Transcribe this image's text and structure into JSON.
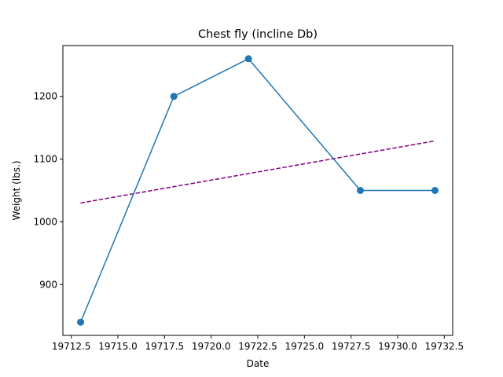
{
  "chart_data": {
    "type": "line",
    "title": "Chest fly (incline Db)",
    "xlabel": "Date",
    "ylabel": "Weight (lbs.)",
    "xlim": [
      19712.05,
      19732.95
    ],
    "ylim": [
      819,
      1281
    ],
    "x_ticks": [
      19712.5,
      19715.0,
      19717.5,
      19720.0,
      19722.5,
      19725.0,
      19727.5,
      19730.0,
      19732.5
    ],
    "x_tick_labels": [
      "19712.5",
      "19715.0",
      "19717.5",
      "19720.0",
      "19722.5",
      "19725.0",
      "19727.5",
      "19730.0",
      "19732.5"
    ],
    "y_ticks": [
      900,
      1000,
      1100,
      1200
    ],
    "y_tick_labels": [
      "900",
      "1000",
      "1100",
      "1200"
    ],
    "grid": false,
    "series": [
      {
        "style": "solid-with-markers",
        "color": "#1f77b4",
        "x": [
          19713,
          19718,
          19722,
          19728,
          19732
        ],
        "y": [
          840,
          1200,
          1260,
          1050,
          1050
        ]
      },
      {
        "style": "dashed",
        "color": "#800080",
        "x": [
          19713,
          19732
        ],
        "y": [
          1030,
          1129
        ]
      }
    ]
  }
}
